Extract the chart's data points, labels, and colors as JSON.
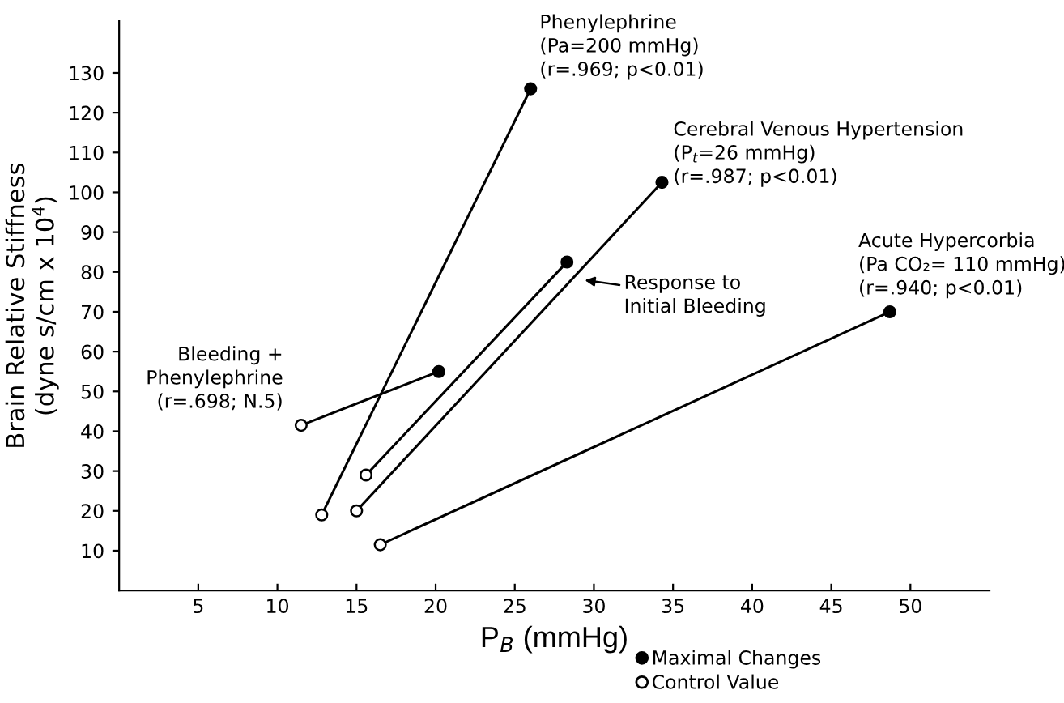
{
  "chart_data": {
    "type": "line",
    "xlabel": "P$_{B}$ (mmHg)",
    "ylabel": "Brain Relative Stiffness\n(dyne s/cm x 10$^{4}$)",
    "xlim": [
      0,
      55
    ],
    "xticks": [
      5,
      10,
      15,
      20,
      25,
      30,
      35,
      40,
      45,
      50
    ],
    "ylim": [
      0,
      143
    ],
    "yticks": [
      10,
      20,
      30,
      40,
      50,
      60,
      70,
      80,
      90,
      100,
      110,
      120,
      130
    ],
    "grid": false,
    "legend": "bottom",
    "series": [
      {
        "color": "#000000",
        "x": [
          12.8,
          26
        ],
        "values": [
          19,
          126
        ],
        "marker": "none"
      },
      {
        "color": "#000000",
        "x": [
          15.0,
          34.3
        ],
        "values": [
          20,
          102.5
        ],
        "marker": "none"
      },
      {
        "color": "#000000",
        "x": [
          15.6,
          28.3
        ],
        "values": [
          29,
          82.5
        ],
        "marker": "none"
      },
      {
        "color": "#000000",
        "x": [
          16.5,
          48.7
        ],
        "values": [
          11.5,
          70
        ],
        "marker": "none"
      },
      {
        "color": "#000000",
        "x": [
          11.5,
          20.2
        ],
        "values": [
          41.5,
          55
        ],
        "marker": "none"
      },
      {
        "type": "scatter",
        "name": "Maximal Changes",
        "color": "#000000",
        "marker": "circle",
        "x": [
          26,
          34.3,
          28.3,
          48.7,
          20.2
        ],
        "values": [
          126,
          102.5,
          82.5,
          70,
          55
        ]
      },
      {
        "type": "scatter",
        "name": "Control Value",
        "color": "#ffffff",
        "marker": "circle",
        "x": [
          12.8,
          15.0,
          15.6,
          16.5,
          11.5
        ],
        "values": [
          19,
          20,
          29,
          11.5,
          41.5
        ]
      }
    ],
    "annotations": [
      {
        "text": "Phenylephrine\n(Pa=200 mmHg)\n(r=.969; p<0.01)",
        "x": 26,
        "y": 126
      },
      {
        "text": "Cerebral Venous Hypertension\n(P$_{t}$=26 mmHg)\n(r=.987; p<0.01)",
        "x": 34.3,
        "y": 102.5
      },
      "Response to\nInitial Bleeding",
      {
        "text": "Acute Hypercorbia\n(Pa CO₂= 110 mmHg)\n(r=.940; p<0.01)",
        "x": 48.7,
        "y": 70
      },
      {
        "text": "Bleeding +\nPhenylephrine\n(r=.698; N.5)",
        "x": 11.5,
        "y": 41.5
      }
    ]
  }
}
